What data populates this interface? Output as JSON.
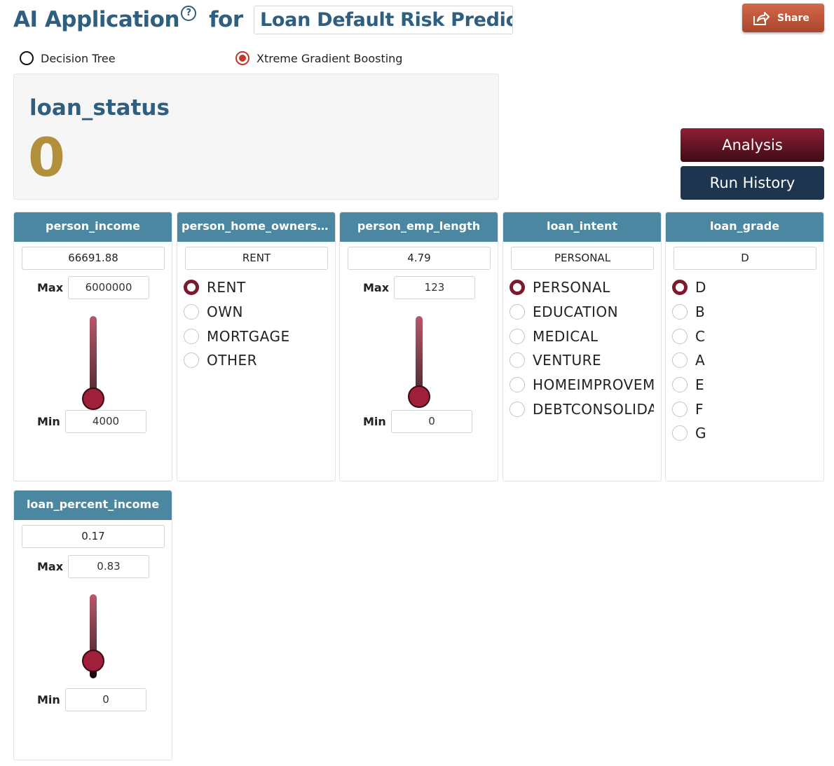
{
  "header": {
    "title_part1": "AI Application",
    "help_glyph": "?",
    "title_part2": "for",
    "app_name": "Loan Default Risk Predict",
    "share_label": "Share",
    "share_icon": "share-icon"
  },
  "models": [
    {
      "label": "Decision Tree",
      "selected": false
    },
    {
      "label": "Xtreme Gradient Boosting",
      "selected": true
    }
  ],
  "result": {
    "label": "loan_status",
    "value": "0"
  },
  "actions": {
    "analysis_label": "Analysis",
    "history_label": "Run History"
  },
  "colors": {
    "title": "#2f5f80",
    "card_header": "#4b87a1",
    "result_value": "#b0903a",
    "accent": "#7a1a2c",
    "slider_thumb": "#a01f3a"
  },
  "fields": {
    "person_income": {
      "name": "person_income",
      "value": "66691.88",
      "max_label": "Max",
      "max": "6000000",
      "min_label": "Min",
      "min": "4000",
      "level": 0.01
    },
    "person_home_ownership": {
      "name": "person_home_ownership",
      "value": "RENT",
      "options": [
        "RENT",
        "OWN",
        "MORTGAGE",
        "OTHER"
      ],
      "selected": "RENT"
    },
    "person_emp_length": {
      "name": "person_emp_length",
      "value": "4.79",
      "max_label": "Max",
      "max": "123",
      "min_label": "Min",
      "min": "0",
      "level": 0.04
    },
    "loan_intent": {
      "name": "loan_intent",
      "value": "PERSONAL",
      "options": [
        "PERSONAL",
        "EDUCATION",
        "MEDICAL",
        "VENTURE",
        "HOMEIMPROVEMENT",
        "DEBTCONSOLIDATION"
      ],
      "selected": "PERSONAL"
    },
    "loan_grade": {
      "name": "loan_grade",
      "value": "D",
      "options": [
        "D",
        "B",
        "C",
        "A",
        "E",
        "F",
        "G"
      ],
      "selected": "D"
    },
    "loan_percent_income": {
      "name": "loan_percent_income",
      "value": "0.17",
      "max_label": "Max",
      "max": "0.83",
      "min_label": "Min",
      "min": "0",
      "level": 0.2
    }
  }
}
